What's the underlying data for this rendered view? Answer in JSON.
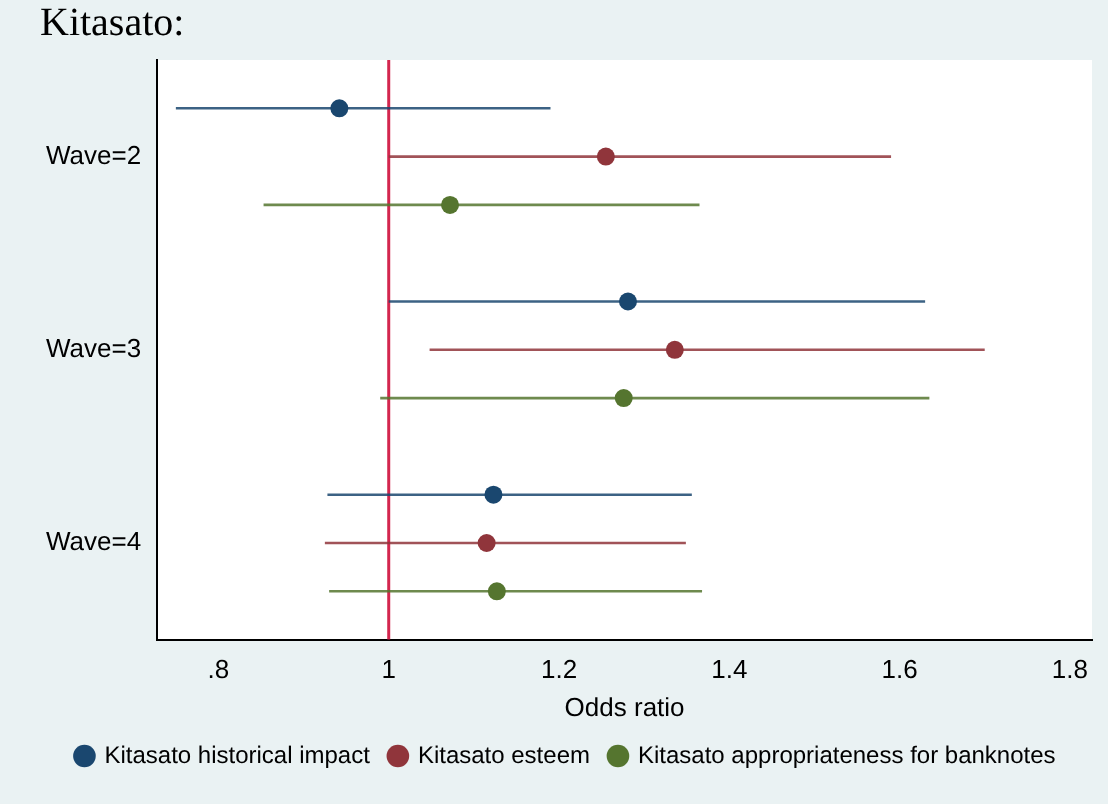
{
  "chart_data": {
    "type": "scatter",
    "orientation": "horizontal",
    "title": "Kitasato:",
    "xlabel": "Odds ratio",
    "categories": [
      "Wave=2",
      "Wave=3",
      "Wave=4"
    ],
    "series": [
      {
        "name": "Kitasato historical impact",
        "color": "#1a476f",
        "values": [
          0.942,
          1.281,
          1.123
        ],
        "errors": [
          [
            0.75,
            1.19
          ],
          [
            1.0,
            1.63
          ],
          [
            0.928,
            1.356
          ]
        ]
      },
      {
        "name": "Kitasato esteem",
        "color": "#90353b",
        "values": [
          1.255,
          1.336,
          1.115
        ],
        "errors": [
          [
            1.0,
            1.59
          ],
          [
            1.048,
            1.7
          ],
          [
            0.925,
            1.349
          ]
        ]
      },
      {
        "name": "Kitasato appropriateness for banknotes",
        "color": "#55752f",
        "values": [
          1.072,
          1.276,
          1.127
        ],
        "errors": [
          [
            0.853,
            1.365
          ],
          [
            0.99,
            1.635
          ],
          [
            0.93,
            1.368
          ]
        ]
      }
    ],
    "xlim": [
      0.728,
      1.826
    ],
    "xticks": [
      {
        "value": 0.8,
        "label": ".8"
      },
      1,
      {
        "value": 1.2,
        "label": "1.2"
      },
      {
        "value": 1.4,
        "label": "1.4"
      },
      {
        "value": 1.6,
        "label": "1.6"
      },
      {
        "value": 1.8,
        "label": "1.8"
      }
    ],
    "ref_lines": [
      {
        "axis": "x",
        "value": 1,
        "color": "#d3264e"
      }
    ],
    "marker": "circle",
    "legend": "bottom"
  }
}
